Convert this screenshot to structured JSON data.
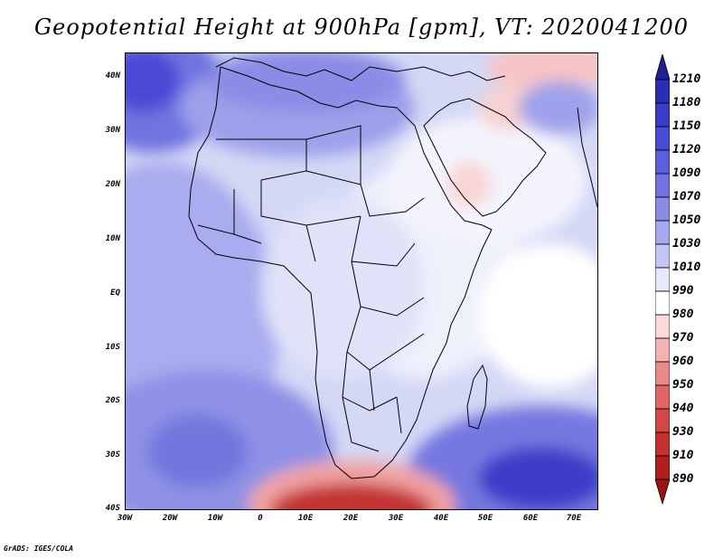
{
  "title": "Geopotential Height at 900hPa [gpm], VT: 2020041200",
  "credit": "GrADS: IGES/COLA",
  "map": {
    "lat_labels": [
      "40N",
      "30N",
      "20N",
      "10N",
      "EQ",
      "10S",
      "20S",
      "30S",
      "40S"
    ],
    "lon_labels": [
      "30W",
      "20W",
      "10W",
      "0",
      "10E",
      "20E",
      "30E",
      "40E",
      "50E",
      "60E",
      "70E"
    ]
  },
  "colorbar": {
    "levels": [
      "1210",
      "1180",
      "1150",
      "1120",
      "1090",
      "1070",
      "1050",
      "1030",
      "1010",
      "990",
      "980",
      "970",
      "960",
      "950",
      "940",
      "930",
      "910",
      "890"
    ],
    "colors": [
      "#1f1f96",
      "#2d2db4",
      "#3b3bc8",
      "#4a4ad6",
      "#5d5edc",
      "#7173e0",
      "#8a8ce6",
      "#a5a8ec",
      "#c3c6f3",
      "#e6e8fb",
      "#ffffff",
      "#fbd9d9",
      "#f3b3b3",
      "#ea8a8a",
      "#e06565",
      "#d44747",
      "#c43030",
      "#b01e1e",
      "#9a1414"
    ]
  }
}
